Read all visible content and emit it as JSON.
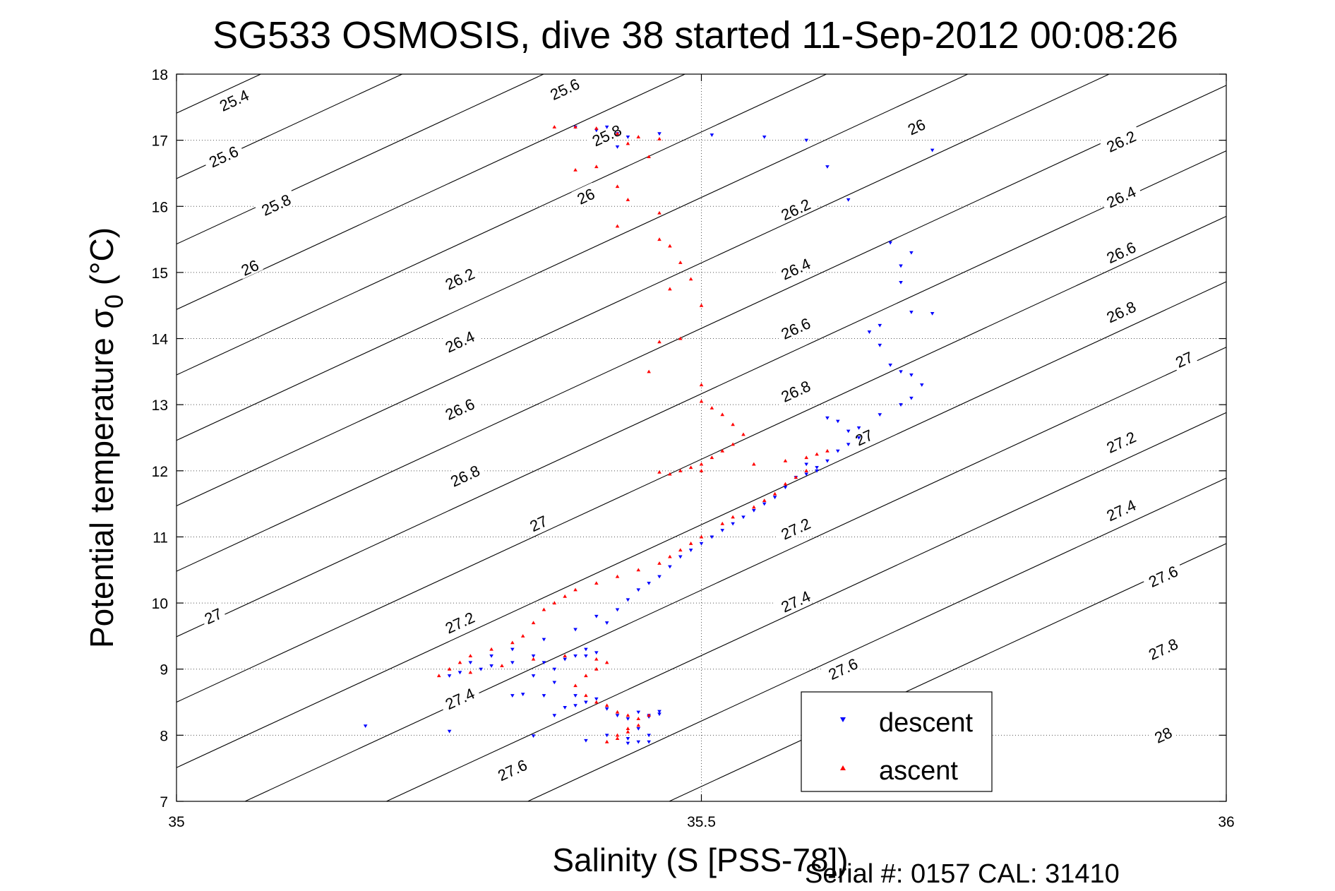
{
  "chart_data": {
    "type": "scatter",
    "title": "SG533 OSMOSIS, dive 38 started 11-Sep-2012 00:08:26",
    "xlabel": "Salinity (S [PSS-78])",
    "ylabel_main": "Potential temperature σ",
    "ylabel_subscript": "0",
    "ylabel_unit": " (°C)",
    "xlim": [
      35,
      36
    ],
    "ylim": [
      7,
      18
    ],
    "x_ticks": [
      35,
      35.5,
      36
    ],
    "x_tick_labels": [
      "35",
      "35.5",
      "36"
    ],
    "y_ticks": [
      7,
      8,
      9,
      10,
      11,
      12,
      13,
      14,
      15,
      16,
      17,
      18
    ],
    "y_tick_labels": [
      "7",
      "8",
      "9",
      "10",
      "11",
      "12",
      "13",
      "14",
      "15",
      "16",
      "17",
      "18"
    ],
    "grid": "dotted",
    "legend_position": "bottom-right",
    "footer": "Serial #: 0157  CAL: 31410",
    "density_contours": [
      "25.4",
      "25.6",
      "25.8",
      "26",
      "26.2",
      "26.4",
      "26.6",
      "26.8",
      "27",
      "27.2",
      "27.4",
      "27.6",
      "27.8",
      "28"
    ],
    "contour_labels": [
      {
        "text": "25.4",
        "x": 35.055,
        "y": 17.6
      },
      {
        "text": "25.6",
        "x": 35.37,
        "y": 17.77
      },
      {
        "text": "25.6",
        "x": 35.045,
        "y": 16.75
      },
      {
        "text": "25.8",
        "x": 35.095,
        "y": 16.02
      },
      {
        "text": "25.8",
        "x": 35.41,
        "y": 17.07
      },
      {
        "text": "26",
        "x": 35.07,
        "y": 15.07
      },
      {
        "text": "26",
        "x": 35.39,
        "y": 16.15
      },
      {
        "text": "26",
        "x": 35.705,
        "y": 17.2
      },
      {
        "text": "26.2",
        "x": 35.27,
        "y": 14.9
      },
      {
        "text": "26.2",
        "x": 35.59,
        "y": 15.95
      },
      {
        "text": "26.2",
        "x": 35.9,
        "y": 16.98
      },
      {
        "text": "26.4",
        "x": 35.27,
        "y": 13.95
      },
      {
        "text": "26.4",
        "x": 35.59,
        "y": 15.05
      },
      {
        "text": "26.4",
        "x": 35.9,
        "y": 16.14
      },
      {
        "text": "26.6",
        "x": 35.27,
        "y": 12.93
      },
      {
        "text": "26.6",
        "x": 35.59,
        "y": 14.15
      },
      {
        "text": "26.6",
        "x": 35.9,
        "y": 15.3
      },
      {
        "text": "26.8",
        "x": 35.275,
        "y": 11.92
      },
      {
        "text": "26.8",
        "x": 35.59,
        "y": 13.2
      },
      {
        "text": "26.8",
        "x": 35.9,
        "y": 14.4
      },
      {
        "text": "27",
        "x": 35.035,
        "y": 9.8
      },
      {
        "text": "27",
        "x": 35.345,
        "y": 11.2
      },
      {
        "text": "27",
        "x": 35.655,
        "y": 12.5
      },
      {
        "text": "27",
        "x": 35.96,
        "y": 13.68
      },
      {
        "text": "27.2",
        "x": 35.27,
        "y": 9.7
      },
      {
        "text": "27.2",
        "x": 35.59,
        "y": 11.12
      },
      {
        "text": "27.2",
        "x": 35.9,
        "y": 12.43
      },
      {
        "text": "27.4",
        "x": 35.27,
        "y": 8.55
      },
      {
        "text": "27.4",
        "x": 35.59,
        "y": 10.02
      },
      {
        "text": "27.4",
        "x": 35.9,
        "y": 11.4
      },
      {
        "text": "27.6",
        "x": 35.32,
        "y": 7.47
      },
      {
        "text": "27.6",
        "x": 35.635,
        "y": 9.0
      },
      {
        "text": "27.6",
        "x": 35.94,
        "y": 10.4
      },
      {
        "text": "27.8",
        "x": 35.94,
        "y": 9.3
      },
      {
        "text": "28",
        "x": 35.94,
        "y": 8.0
      }
    ],
    "series": [
      {
        "name": "descent",
        "color": "#0000ff",
        "marker": "triangle-down",
        "points": [
          [
            35.18,
            8.14
          ],
          [
            35.26,
            8.06
          ],
          [
            35.34,
            7.99
          ],
          [
            35.43,
            7.95
          ],
          [
            35.43,
            7.88
          ],
          [
            35.44,
            7.9
          ],
          [
            35.45,
            7.9
          ],
          [
            35.45,
            8.0
          ],
          [
            35.44,
            8.1
          ],
          [
            35.45,
            8.3
          ],
          [
            35.46,
            8.32
          ],
          [
            35.45,
            8.28
          ],
          [
            35.44,
            8.35
          ],
          [
            35.43,
            8.25
          ],
          [
            35.42,
            8.3
          ],
          [
            35.41,
            8.4
          ],
          [
            35.4,
            8.55
          ],
          [
            35.39,
            8.5
          ],
          [
            35.38,
            8.6
          ],
          [
            35.37,
            8.42
          ],
          [
            35.36,
            8.3
          ],
          [
            35.35,
            8.6
          ],
          [
            35.33,
            8.62
          ],
          [
            35.32,
            8.6
          ],
          [
            35.36,
            8.8
          ],
          [
            35.34,
            8.9
          ],
          [
            35.35,
            9.1
          ],
          [
            35.36,
            9.0
          ],
          [
            35.38,
            9.2
          ],
          [
            35.39,
            9.3
          ],
          [
            35.4,
            9.25
          ],
          [
            35.39,
            9.2
          ],
          [
            35.37,
            9.15
          ],
          [
            35.34,
            9.2
          ],
          [
            35.32,
            9.1
          ],
          [
            35.3,
            9.05
          ],
          [
            35.29,
            9.0
          ],
          [
            35.27,
            8.95
          ],
          [
            35.26,
            8.9
          ],
          [
            35.28,
            9.1
          ],
          [
            35.3,
            9.2
          ],
          [
            35.32,
            9.3
          ],
          [
            35.35,
            9.45
          ],
          [
            35.38,
            9.6
          ],
          [
            35.4,
            9.8
          ],
          [
            35.41,
            9.7
          ],
          [
            35.42,
            9.9
          ],
          [
            35.43,
            10.05
          ],
          [
            35.44,
            10.2
          ],
          [
            35.45,
            10.3
          ],
          [
            35.46,
            10.4
          ],
          [
            35.47,
            10.55
          ],
          [
            35.48,
            10.7
          ],
          [
            35.49,
            10.8
          ],
          [
            35.5,
            10.9
          ],
          [
            35.51,
            11.0
          ],
          [
            35.52,
            11.1
          ],
          [
            35.53,
            11.2
          ],
          [
            35.54,
            11.3
          ],
          [
            35.55,
            11.4
          ],
          [
            35.56,
            11.5
          ],
          [
            35.57,
            11.6
          ],
          [
            35.58,
            11.75
          ],
          [
            35.59,
            11.9
          ],
          [
            35.6,
            11.95
          ],
          [
            35.61,
            12.0
          ],
          [
            35.6,
            12.1
          ],
          [
            35.61,
            12.05
          ],
          [
            35.62,
            12.15
          ],
          [
            35.63,
            12.3
          ],
          [
            35.64,
            12.4
          ],
          [
            35.65,
            12.5
          ],
          [
            35.64,
            12.6
          ],
          [
            35.63,
            12.75
          ],
          [
            35.62,
            12.8
          ],
          [
            35.65,
            12.65
          ],
          [
            35.67,
            12.85
          ],
          [
            35.69,
            13.0
          ],
          [
            35.7,
            13.1
          ],
          [
            35.71,
            13.3
          ],
          [
            35.7,
            13.45
          ],
          [
            35.69,
            13.5
          ],
          [
            35.68,
            13.6
          ],
          [
            35.67,
            13.9
          ],
          [
            35.66,
            14.1
          ],
          [
            35.67,
            14.2
          ],
          [
            35.7,
            14.4
          ],
          [
            35.72,
            14.38
          ],
          [
            35.69,
            14.85
          ],
          [
            35.69,
            15.1
          ],
          [
            35.7,
            15.3
          ],
          [
            35.68,
            15.45
          ],
          [
            35.64,
            16.1
          ],
          [
            35.62,
            16.6
          ],
          [
            35.6,
            17.0
          ],
          [
            35.56,
            17.05
          ],
          [
            35.51,
            17.08
          ],
          [
            35.72,
            16.85
          ],
          [
            35.42,
            17.1
          ],
          [
            35.43,
            17.05
          ],
          [
            35.46,
            17.1
          ],
          [
            35.38,
            17.2
          ],
          [
            35.4,
            17.15
          ],
          [
            35.41,
            17.2
          ],
          [
            35.42,
            16.9
          ],
          [
            35.41,
            8.0
          ],
          [
            35.39,
            7.92
          ],
          [
            35.46,
            8.36
          ],
          [
            35.38,
            8.45
          ]
        ]
      },
      {
        "name": "ascent",
        "color": "#ff0000",
        "marker": "triangle-up",
        "points": [
          [
            35.36,
            17.2
          ],
          [
            35.38,
            17.2
          ],
          [
            35.4,
            17.18
          ],
          [
            35.42,
            17.1
          ],
          [
            35.44,
            17.05
          ],
          [
            35.46,
            17.02
          ],
          [
            35.43,
            16.95
          ],
          [
            35.45,
            16.75
          ],
          [
            35.38,
            16.55
          ],
          [
            35.4,
            16.6
          ],
          [
            35.42,
            16.3
          ],
          [
            35.43,
            16.1
          ],
          [
            35.46,
            15.9
          ],
          [
            35.42,
            15.7
          ],
          [
            35.46,
            15.5
          ],
          [
            35.47,
            15.4
          ],
          [
            35.48,
            15.15
          ],
          [
            35.49,
            14.9
          ],
          [
            35.47,
            14.75
          ],
          [
            35.5,
            14.5
          ],
          [
            35.48,
            14.0
          ],
          [
            35.46,
            13.95
          ],
          [
            35.45,
            13.5
          ],
          [
            35.5,
            13.3
          ],
          [
            35.5,
            13.05
          ],
          [
            35.51,
            12.95
          ],
          [
            35.52,
            12.85
          ],
          [
            35.53,
            12.7
          ],
          [
            35.54,
            12.55
          ],
          [
            35.53,
            12.4
          ],
          [
            35.52,
            12.3
          ],
          [
            35.51,
            12.2
          ],
          [
            35.5,
            12.1
          ],
          [
            35.49,
            12.05
          ],
          [
            35.48,
            12.0
          ],
          [
            35.47,
            11.95
          ],
          [
            35.46,
            11.98
          ],
          [
            35.5,
            12.0
          ],
          [
            35.55,
            12.1
          ],
          [
            35.58,
            12.15
          ],
          [
            35.6,
            12.2
          ],
          [
            35.61,
            12.25
          ],
          [
            35.62,
            12.3
          ],
          [
            35.6,
            12.0
          ],
          [
            35.59,
            11.9
          ],
          [
            35.58,
            11.8
          ],
          [
            35.57,
            11.65
          ],
          [
            35.56,
            11.55
          ],
          [
            35.55,
            11.45
          ],
          [
            35.53,
            11.3
          ],
          [
            35.52,
            11.2
          ],
          [
            35.5,
            11.0
          ],
          [
            35.49,
            10.9
          ],
          [
            35.48,
            10.8
          ],
          [
            35.47,
            10.7
          ],
          [
            35.46,
            10.6
          ],
          [
            35.44,
            10.5
          ],
          [
            35.42,
            10.4
          ],
          [
            35.4,
            10.3
          ],
          [
            35.38,
            10.2
          ],
          [
            35.37,
            10.1
          ],
          [
            35.36,
            10.0
          ],
          [
            35.35,
            9.9
          ],
          [
            35.34,
            9.7
          ],
          [
            35.33,
            9.5
          ],
          [
            35.32,
            9.4
          ],
          [
            35.3,
            9.3
          ],
          [
            35.28,
            9.2
          ],
          [
            35.27,
            9.1
          ],
          [
            35.26,
            9.0
          ],
          [
            35.25,
            8.9
          ],
          [
            35.28,
            8.95
          ],
          [
            35.31,
            9.05
          ],
          [
            35.34,
            9.15
          ],
          [
            35.37,
            9.2
          ],
          [
            35.4,
            9.15
          ],
          [
            35.41,
            9.1
          ],
          [
            35.4,
            9.0
          ],
          [
            35.39,
            8.9
          ],
          [
            35.38,
            8.75
          ],
          [
            35.39,
            8.6
          ],
          [
            35.4,
            8.5
          ],
          [
            35.41,
            8.45
          ],
          [
            35.42,
            8.35
          ],
          [
            35.43,
            8.3
          ],
          [
            35.44,
            8.25
          ],
          [
            35.45,
            8.3
          ],
          [
            35.44,
            8.15
          ],
          [
            35.43,
            8.05
          ],
          [
            35.42,
            7.95
          ],
          [
            35.41,
            7.9
          ],
          [
            35.42,
            8.0
          ],
          [
            35.43,
            8.1
          ]
        ]
      }
    ]
  }
}
